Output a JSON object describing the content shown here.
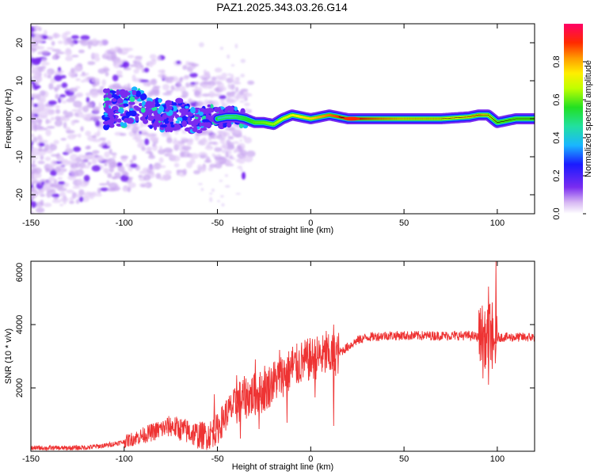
{
  "title": "PAZ1.2025.343.03.26.G14",
  "chart_data": [
    {
      "type": "heatmap",
      "name": "spectrogram",
      "xlabel": "Height of straight line (km)",
      "ylabel": "Frequency (Hz)",
      "xlim": [
        -150,
        120
      ],
      "ylim": [
        -25,
        25
      ],
      "xticks": [
        -150,
        -100,
        -50,
        0,
        50,
        100
      ],
      "yticks": [
        -20,
        -10,
        0,
        10,
        20
      ],
      "ridge": {
        "x": [
          -110,
          -105,
          -100,
          -95,
          -90,
          -85,
          -80,
          -75,
          -70,
          -65,
          -60,
          -55,
          -50,
          -45,
          -40,
          -35,
          -30,
          -25,
          -20,
          -15,
          -10,
          -5,
          0,
          5,
          10,
          15,
          20,
          30,
          50,
          70,
          85,
          90,
          95,
          100,
          110,
          120
        ],
        "y": [
          2.5,
          3,
          2.5,
          3.5,
          3,
          1.5,
          1,
          0.5,
          1.5,
          0,
          -1,
          1,
          0,
          0.5,
          0.5,
          0,
          -1,
          -1,
          -1.5,
          0,
          1,
          0.5,
          0,
          0.5,
          1,
          0.5,
          0,
          0,
          0,
          0,
          0.5,
          1,
          1,
          -1,
          0,
          0
        ],
        "amplitude": [
          0.12,
          0.15,
          0.18,
          0.2,
          0.22,
          0.25,
          0.28,
          0.3,
          0.3,
          0.32,
          0.33,
          0.36,
          0.4,
          0.45,
          0.5,
          0.55,
          0.6,
          0.62,
          0.65,
          0.7,
          0.75,
          0.78,
          0.8,
          0.85,
          0.9,
          0.95,
          1.0,
          0.9,
          0.75,
          0.72,
          0.78,
          0.82,
          0.7,
          0.6,
          0.6,
          0.6
        ]
      },
      "colorbar": {
        "label": "Normalized spectral amplitude",
        "ticks": [
          "0.0",
          "0.2",
          "0.4",
          "0.6",
          "0.8"
        ],
        "range": [
          0,
          1
        ]
      }
    },
    {
      "type": "line",
      "name": "snr",
      "xlabel": "Height of straight line (km)",
      "ylabel": "SNR (10 * v/v)",
      "xlim": [
        -150,
        120
      ],
      "ylim": [
        0,
        6000
      ],
      "xticks": [
        -150,
        -100,
        -50,
        0,
        50,
        100
      ],
      "yticks": [
        2000,
        4000,
        6000
      ],
      "color": "#ee3333",
      "x": [
        -150,
        -140,
        -130,
        -120,
        -110,
        -100,
        -95,
        -90,
        -85,
        -80,
        -75,
        -70,
        -65,
        -60,
        -55,
        -50,
        -45,
        -40,
        -35,
        -30,
        -25,
        -20,
        -15,
        -10,
        -5,
        0,
        5,
        10,
        15,
        20,
        25,
        30,
        40,
        50,
        60,
        70,
        80,
        85,
        90,
        92,
        94,
        96,
        98,
        100,
        105,
        110,
        120
      ],
      "y": [
        100,
        100,
        100,
        120,
        180,
        300,
        400,
        500,
        600,
        700,
        800,
        700,
        600,
        500,
        500,
        700,
        1200,
        1500,
        1700,
        1800,
        1900,
        2200,
        2400,
        2600,
        2800,
        2900,
        3000,
        3000,
        3100,
        3300,
        3500,
        3600,
        3650,
        3650,
        3650,
        3650,
        3650,
        3650,
        3600,
        3800,
        3400,
        3900,
        3200,
        3600,
        3600,
        3600,
        3600
      ],
      "spikes": [
        {
          "x": -52,
          "y": 1800
        },
        {
          "x": -40,
          "y": 2400
        },
        {
          "x": -30,
          "y": 2900
        },
        {
          "x": -25,
          "y": 2700
        },
        {
          "x": -17,
          "y": 3200
        },
        {
          "x": -10,
          "y": 3300
        },
        {
          "x": -4,
          "y": 3000
        },
        {
          "x": 8,
          "y": 3800
        },
        {
          "x": 12,
          "y": 4000
        },
        {
          "x": 93,
          "y": 4300
        },
        {
          "x": 95,
          "y": 5200
        },
        {
          "x": 97,
          "y": 4700
        },
        {
          "x": 99,
          "y": 6000
        }
      ],
      "dips": [
        {
          "x": -38,
          "y": 400
        },
        {
          "x": -28,
          "y": 700
        },
        {
          "x": -13,
          "y": 900
        },
        {
          "x": 2,
          "y": 1700
        },
        {
          "x": 12,
          "y": 800
        },
        {
          "x": 92,
          "y": 2300
        },
        {
          "x": 95,
          "y": 2100
        },
        {
          "x": 97,
          "y": 2600
        }
      ]
    }
  ]
}
